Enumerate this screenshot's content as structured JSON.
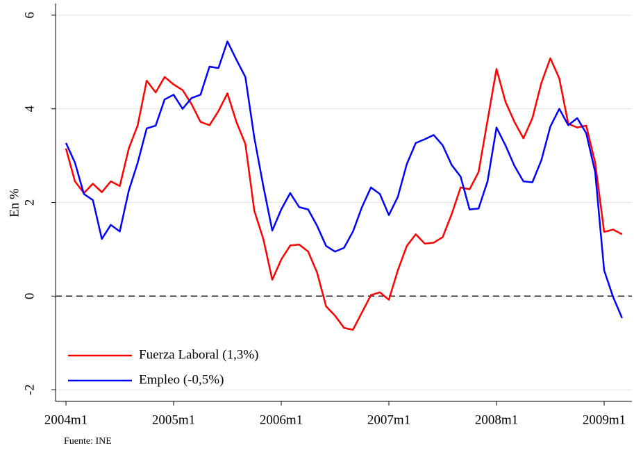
{
  "chart_data": {
    "type": "line",
    "y_label": "En %",
    "note": "Fuente: INE",
    "categories": [
      "2004m1",
      null,
      null,
      null,
      null,
      null,
      null,
      null,
      null,
      null,
      null,
      null,
      "2005m1",
      null,
      null,
      null,
      null,
      null,
      null,
      null,
      null,
      null,
      null,
      null,
      "2006m1",
      null,
      null,
      null,
      null,
      null,
      null,
      null,
      null,
      null,
      null,
      null,
      "2007m1",
      null,
      null,
      null,
      null,
      null,
      null,
      null,
      null,
      null,
      null,
      null,
      "2008m1",
      null,
      null,
      null,
      null,
      null,
      null,
      null,
      null,
      null,
      null,
      null,
      "2009m1",
      null,
      null
    ],
    "series": [
      {
        "name": "Fuerza Laboral (1,3%)",
        "color": "#ff0000",
        "values": [
          3.15,
          2.45,
          2.2,
          2.4,
          2.22,
          2.45,
          2.35,
          3.15,
          3.65,
          4.6,
          4.35,
          4.68,
          4.52,
          4.4,
          4.1,
          3.72,
          3.65,
          3.95,
          4.33,
          3.72,
          3.25,
          1.82,
          1.22,
          0.35,
          0.78,
          1.08,
          1.1,
          0.95,
          0.5,
          -0.22,
          -0.42,
          -0.68,
          -0.72,
          -0.35,
          0.02,
          0.08,
          -0.08,
          0.55,
          1.07,
          1.32,
          1.12,
          1.14,
          1.26,
          1.75,
          2.32,
          2.28,
          2.65,
          3.75,
          4.85,
          4.15,
          3.72,
          3.37,
          3.8,
          4.55,
          5.08,
          4.65,
          3.68,
          3.6,
          3.64,
          2.85,
          1.37,
          1.42,
          1.32
        ]
      },
      {
        "name": "Empleo (-0,5%)",
        "color": "#0000ff",
        "values": [
          3.27,
          2.85,
          2.18,
          2.05,
          1.22,
          1.52,
          1.38,
          2.25,
          2.85,
          3.58,
          3.64,
          4.2,
          4.3,
          4.0,
          4.23,
          4.3,
          4.9,
          4.87,
          5.44,
          5.05,
          4.68,
          3.38,
          2.35,
          1.4,
          1.85,
          2.2,
          1.9,
          1.85,
          1.5,
          1.07,
          0.95,
          1.03,
          1.38,
          1.9,
          2.32,
          2.18,
          1.73,
          2.12,
          2.82,
          3.27,
          3.35,
          3.44,
          3.22,
          2.8,
          2.55,
          1.85,
          1.87,
          2.45,
          3.6,
          3.22,
          2.78,
          2.45,
          2.43,
          2.9,
          3.62,
          4.0,
          3.65,
          3.8,
          3.48,
          2.65,
          0.55,
          -0.02,
          -0.47
        ]
      }
    ],
    "ylim": [
      -2.25,
      6.25
    ],
    "yticks": [
      -2,
      0,
      2,
      4,
      6
    ],
    "grid": true,
    "reference_line": 0,
    "legend": "lower left"
  }
}
